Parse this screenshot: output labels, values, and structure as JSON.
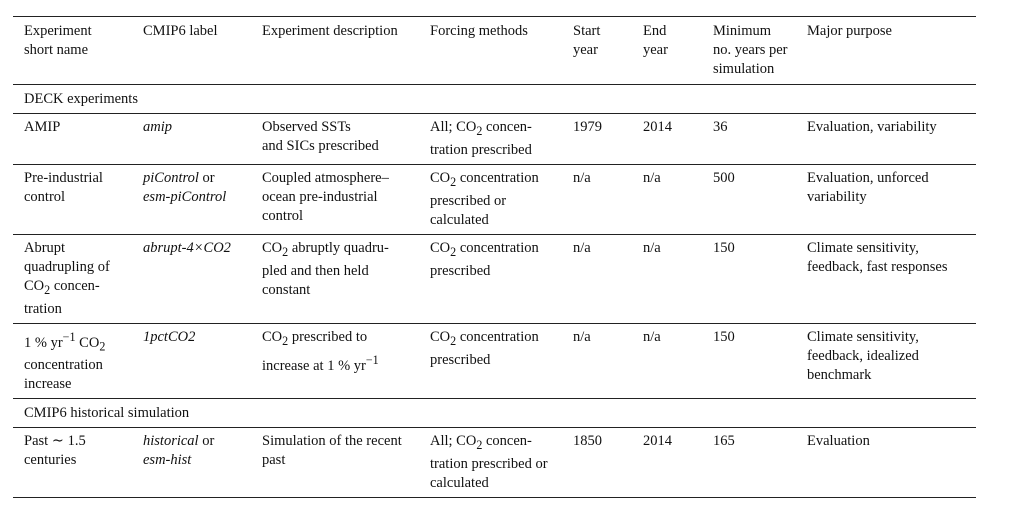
{
  "table": {
    "headers": {
      "short_name": "Experiment short name",
      "cmip6_label": "CMIP6 label",
      "description": "Experiment description",
      "forcing": "Forcing methods",
      "start": "Start year",
      "end": "End year",
      "min_years": "Minimum no. years per simulation",
      "purpose": "Major purpose"
    },
    "sections": {
      "deck": "DECK experiments",
      "historical": "CMIP6 historical simulation"
    },
    "rows": {
      "amip": {
        "name": "AMIP",
        "label": "amip",
        "description_line1": "Observed SSTs",
        "description_line2": "and SICs prescribed",
        "forcing_prefix": "All; CO",
        "forcing_sub": "2",
        "forcing_rest": " concen-tration prescribed",
        "start": "1979",
        "end": "2014",
        "years": "36",
        "purpose": "Evaluation, variability"
      },
      "picontrol": {
        "name": "Pre-industrial control",
        "label_a": "piControl",
        "label_join": " or",
        "label_b": "esm-piControl",
        "description": "Coupled atmosphere–ocean pre-industrial control",
        "forcing_prefix": "CO",
        "forcing_sub": "2",
        "forcing_rest": " concentration prescribed or calculated",
        "start": "n/a",
        "end": "n/a",
        "years": "500",
        "purpose": "Evaluation, unforced variability"
      },
      "abrupt": {
        "name_prefix": "Abrupt quadrupling of CO",
        "name_sub": "2",
        "name_rest": " concen-tration",
        "label": "abrupt-4×CO2",
        "desc_prefix": "CO",
        "desc_sub": "2",
        "desc_rest": " abruptly quadru-pled and then held constant",
        "forcing_prefix": "CO",
        "forcing_sub": "2",
        "forcing_rest": " concentration prescribed",
        "start": "n/a",
        "end": "n/a",
        "years": "150",
        "purpose": "Climate sensitivity, feedback, fast responses"
      },
      "onepct": {
        "name_prefix": "1 % yr",
        "name_sup": "−1",
        "name_mid": " CO",
        "name_sub": "2",
        "name_rest": " concentration increase",
        "label": "1pctCO2",
        "desc_prefix": "CO",
        "desc_sub": "2",
        "desc_mid": " prescribed to increase at 1 % yr",
        "desc_sup": "−1",
        "forcing_prefix": "CO",
        "forcing_sub": "2",
        "forcing_rest": " concentration prescribed",
        "start": "n/a",
        "end": "n/a",
        "years": "150",
        "purpose": "Climate sensitivity, feedback, idealized benchmark"
      },
      "historical": {
        "name": "Past ∼ 1.5 centuries",
        "label_a": "historical",
        "label_join": " or",
        "label_b": "esm-hist",
        "description": "Simulation of the recent past",
        "forcing_prefix": "All; CO",
        "forcing_sub": "2",
        "forcing_rest": " concen-tration prescribed or calculated",
        "start": "1850",
        "end": "2014",
        "years": "165",
        "purpose": "Evaluation"
      }
    }
  }
}
